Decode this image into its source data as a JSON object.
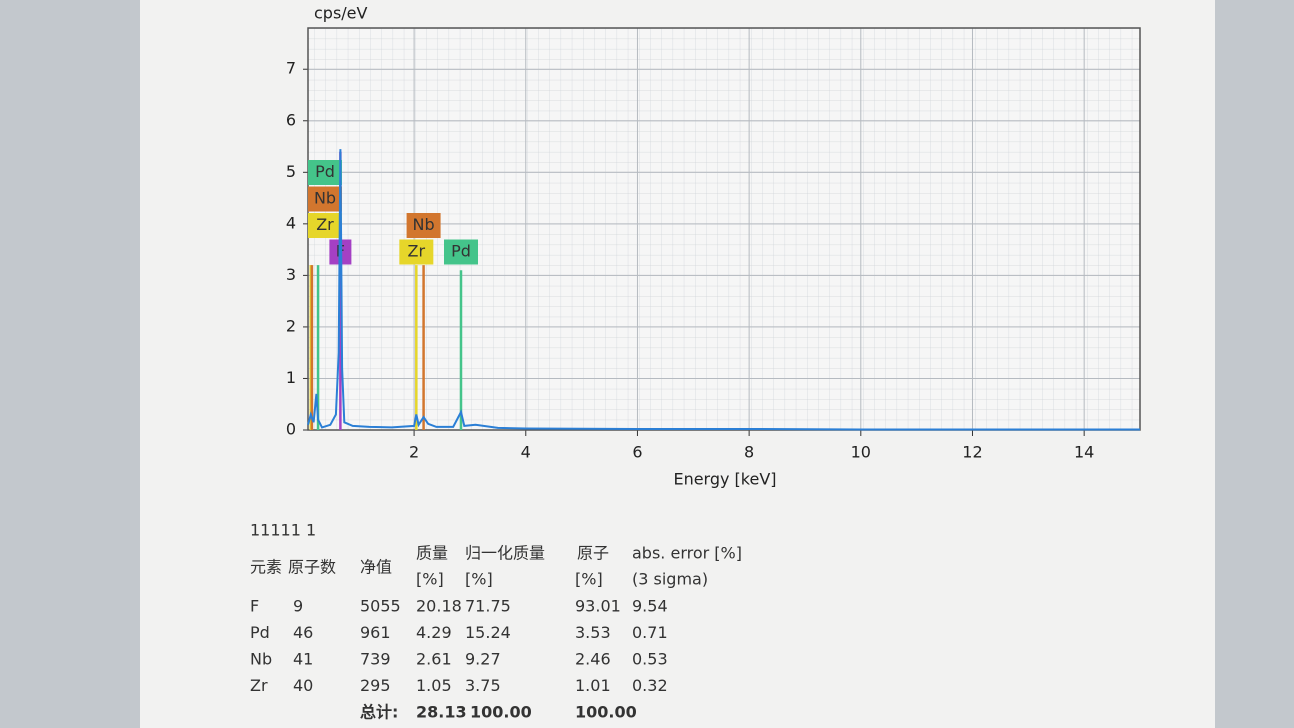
{
  "chart_data": {
    "type": "line",
    "y_label": "cps/eV",
    "x_label": "Energy [keV]",
    "xlim": [
      0.1,
      15
    ],
    "ylim": [
      0,
      7.8
    ],
    "xticks": [
      2,
      4,
      6,
      8,
      10,
      12,
      14
    ],
    "yticks": [
      0,
      1,
      2,
      3,
      4,
      5,
      6,
      7
    ],
    "grid": true,
    "series": [
      {
        "color": "#2b7fd6",
        "x": [
          0.1,
          0.15,
          0.2,
          0.25,
          0.28,
          0.35,
          0.5,
          0.6,
          0.65,
          0.68,
          0.71,
          0.75,
          0.9,
          1.2,
          1.6,
          2.0,
          2.04,
          2.08,
          2.17,
          2.25,
          2.4,
          2.7,
          2.84,
          2.9,
          3.1,
          3.5,
          4,
          6,
          8,
          10,
          12,
          15
        ],
        "values": [
          0.1,
          0.3,
          0.15,
          0.7,
          0.2,
          0.05,
          0.1,
          0.3,
          1.5,
          5.45,
          1.2,
          0.15,
          0.08,
          0.06,
          0.05,
          0.08,
          0.3,
          0.1,
          0.25,
          0.12,
          0.06,
          0.06,
          0.35,
          0.08,
          0.1,
          0.04,
          0.03,
          0.02,
          0.02,
          0.01,
          0.01,
          0.01
        ]
      }
    ],
    "peaks": [
      {
        "element": "F",
        "energy": 0.68,
        "height": 5.4,
        "color": "#a440c4"
      },
      {
        "element": "Zr",
        "energy": 0.15,
        "height": 3.2,
        "color": "#e6d62a"
      },
      {
        "element": "Nb",
        "energy": 0.17,
        "height": 3.2,
        "color": "#d2762e"
      },
      {
        "element": "Pd",
        "energy": 0.28,
        "height": 3.2,
        "color": "#44c48a"
      },
      {
        "element": "Zr",
        "energy": 2.04,
        "height": 3.2,
        "color": "#e6d62a"
      },
      {
        "element": "Nb",
        "energy": 2.17,
        "height": 3.2,
        "color": "#d2762e"
      },
      {
        "element": "Pd",
        "energy": 2.84,
        "height": 3.1,
        "color": "#44c48a"
      }
    ]
  },
  "table": {
    "title": "11111 1",
    "header": [
      "元素",
      "原子数",
      "净值",
      "质量",
      "归一化质量",
      "原子",
      "abs. error [%]"
    ],
    "units": [
      "[%]",
      "[%]",
      "[%]",
      "(3 sigma)"
    ],
    "rows": [
      [
        "F",
        "9",
        "5055",
        "20.18",
        "71.75",
        "93.01",
        "9.54"
      ],
      [
        "Pd",
        "46",
        "961",
        "4.29",
        "15.24",
        "3.53",
        "0.71"
      ],
      [
        "Nb",
        "41",
        "739",
        "2.61",
        "9.27",
        "2.46",
        "0.53"
      ],
      [
        "Zr",
        "40",
        "295",
        "1.05",
        "3.75",
        "1.01",
        "0.32"
      ]
    ],
    "total": {
      "label": "总计:",
      "values": [
        "28.13",
        "100.00",
        "100.00"
      ]
    }
  }
}
